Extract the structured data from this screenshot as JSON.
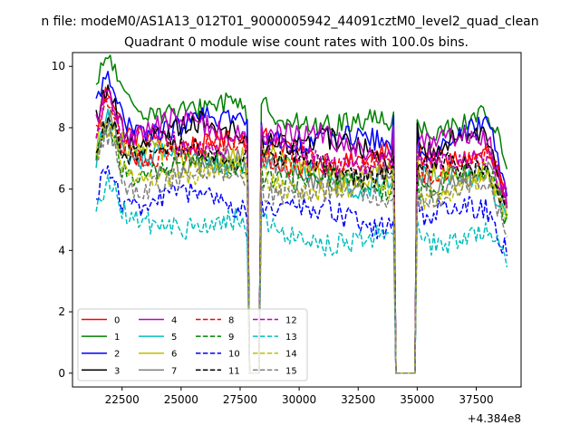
{
  "chart_data": {
    "type": "line",
    "suptitle": "n file: modeM0/AS1A13_012T01_9000005942_44091cztM0_level2_quad_clean",
    "title": "Quadrant 0 module wise count rates with 100.0s bins.",
    "xlabel": "",
    "ylabel": "",
    "offset_text": "+4.384e8",
    "xlim": [
      20400,
      39400
    ],
    "ylim": [
      -0.45,
      10.45
    ],
    "xticks": [
      22500,
      25000,
      27500,
      30000,
      32500,
      35000,
      37500
    ],
    "xtick_labels": [
      "22500",
      "25000",
      "27500",
      "30000",
      "32500",
      "35000",
      "37500"
    ],
    "yticks": [
      0,
      2,
      4,
      6,
      8,
      10
    ],
    "ytick_labels": [
      "0",
      "2",
      "4",
      "6",
      "8",
      "10"
    ],
    "x_range": [
      21400,
      38800
    ],
    "bin_width": 100,
    "gaps": [
      {
        "start": 27900,
        "end": 28300
      },
      {
        "start": 34100,
        "end": 34900
      }
    ],
    "legend_position": "lower left",
    "series": [
      {
        "name": "0",
        "color": "#ff0000",
        "dash": "solid",
        "baseline": 7.3,
        "peak": 9.0
      },
      {
        "name": "1",
        "color": "#008000",
        "dash": "solid",
        "baseline": 8.4,
        "peak": 10.0
      },
      {
        "name": "2",
        "color": "#0000ff",
        "dash": "solid",
        "baseline": 7.8,
        "peak": 9.6
      },
      {
        "name": "3",
        "color": "#000000",
        "dash": "solid",
        "baseline": 7.6,
        "peak": 9.3
      },
      {
        "name": "4",
        "color": "#bf00bf",
        "dash": "solid",
        "baseline": 7.7,
        "peak": 9.2
      },
      {
        "name": "5",
        "color": "#00bfbf",
        "dash": "solid",
        "baseline": 6.6,
        "peak": 8.4
      },
      {
        "name": "6",
        "color": "#bfbf00",
        "dash": "solid",
        "baseline": 6.8,
        "peak": 8.3
      },
      {
        "name": "7",
        "color": "#808080",
        "dash": "solid",
        "baseline": 6.6,
        "peak": 8.0
      },
      {
        "name": "8",
        "color": "#ff0000",
        "dash": "dashed",
        "baseline": 7.0,
        "peak": 8.6
      },
      {
        "name": "9",
        "color": "#008000",
        "dash": "dashed",
        "baseline": 6.4,
        "peak": 7.9
      },
      {
        "name": "10",
        "color": "#0000ff",
        "dash": "dashed",
        "baseline": 5.3,
        "peak": 6.9
      },
      {
        "name": "11",
        "color": "#000000",
        "dash": "dashed",
        "baseline": 6.9,
        "peak": 8.4
      },
      {
        "name": "12",
        "color": "#bf00bf",
        "dash": "dashed",
        "baseline": 7.2,
        "peak": 8.7
      },
      {
        "name": "13",
        "color": "#00bfbf",
        "dash": "dashed",
        "baseline": 4.6,
        "peak": 5.9
      },
      {
        "name": "14",
        "color": "#bfbf00",
        "dash": "dashed",
        "baseline": 6.2,
        "peak": 7.8
      },
      {
        "name": "15",
        "color": "#808080",
        "dash": "dashed",
        "baseline": 6.0,
        "peak": 7.6
      }
    ]
  }
}
